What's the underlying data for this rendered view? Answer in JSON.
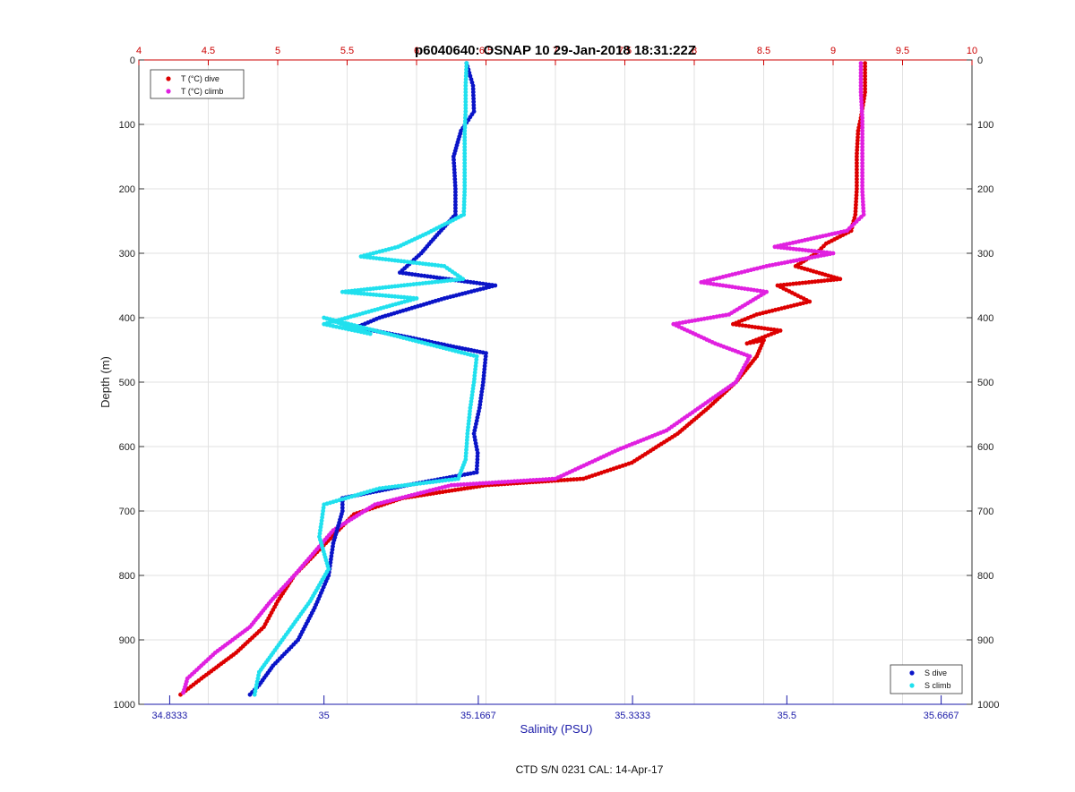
{
  "chart_data": {
    "type": "scatter",
    "title": "p6040640: OSNAP 10 29-Jan-2018 18:31:22Z",
    "ylabel": "Depth (m)",
    "xlabel_bottom": "Salinity (PSU)",
    "footer": "CTD S/N 0231  CAL: 14-Apr-17",
    "y_axis": {
      "range": [
        0,
        1000
      ],
      "reversed": true,
      "ticks": [
        "0",
        "100",
        "200",
        "300",
        "400",
        "500",
        "600",
        "700",
        "800",
        "900",
        "1000"
      ]
    },
    "x_top": {
      "name": "temperature",
      "range": [
        4,
        10
      ],
      "color": "#cc0000",
      "ticks": [
        "4",
        "4.5",
        "5",
        "5.5",
        "6",
        "6.5",
        "7",
        "7.5",
        "8",
        "8.5",
        "9",
        "9.5",
        "10"
      ]
    },
    "x_bottom": {
      "name": "salinity",
      "range": [
        34.8,
        35.7
      ],
      "color": "#1a1aa8",
      "ticks": [
        "34.8333",
        "35",
        "35.1667",
        "35.3333",
        "35.5",
        "35.6667"
      ]
    },
    "grid": true,
    "legends": [
      {
        "position": "top-left",
        "entries": [
          "T (°C) dive",
          "T (°C) climb"
        ]
      },
      {
        "position": "bottom-right",
        "entries": [
          "S dive",
          "S climb"
        ]
      }
    ],
    "series": [
      {
        "name": "T (°C) dive",
        "axis": "top",
        "color": "#dd0000",
        "points": [
          [
            9.23,
            5
          ],
          [
            9.23,
            50
          ],
          [
            9.2,
            90
          ],
          [
            9.18,
            110
          ],
          [
            9.17,
            150
          ],
          [
            9.17,
            200
          ],
          [
            9.16,
            240
          ],
          [
            9.13,
            265
          ],
          [
            8.95,
            285
          ],
          [
            8.88,
            300
          ],
          [
            8.73,
            320
          ],
          [
            9.05,
            340
          ],
          [
            8.6,
            350
          ],
          [
            8.83,
            375
          ],
          [
            8.45,
            395
          ],
          [
            8.28,
            410
          ],
          [
            8.62,
            420
          ],
          [
            8.38,
            440
          ],
          [
            8.5,
            435
          ],
          [
            8.45,
            460
          ],
          [
            8.3,
            500
          ],
          [
            8.1,
            540
          ],
          [
            7.88,
            580
          ],
          [
            7.55,
            625
          ],
          [
            7.2,
            650
          ],
          [
            6.5,
            660
          ],
          [
            5.9,
            680
          ],
          [
            5.55,
            705
          ],
          [
            5.3,
            760
          ],
          [
            5.12,
            800
          ],
          [
            5.0,
            840
          ],
          [
            4.9,
            880
          ],
          [
            4.7,
            920
          ],
          [
            4.45,
            960
          ],
          [
            4.3,
            985
          ]
        ]
      },
      {
        "name": "T (°C) climb",
        "axis": "top",
        "color": "#e020e0",
        "points": [
          [
            9.2,
            5
          ],
          [
            9.2,
            50
          ],
          [
            9.21,
            90
          ],
          [
            9.21,
            150
          ],
          [
            9.21,
            200
          ],
          [
            9.22,
            240
          ],
          [
            9.1,
            265
          ],
          [
            8.58,
            290
          ],
          [
            9.0,
            300
          ],
          [
            8.52,
            320
          ],
          [
            8.05,
            345
          ],
          [
            8.52,
            360
          ],
          [
            8.25,
            395
          ],
          [
            7.85,
            410
          ],
          [
            7.95,
            420
          ],
          [
            8.15,
            440
          ],
          [
            8.4,
            460
          ],
          [
            8.3,
            500
          ],
          [
            8.1,
            530
          ],
          [
            7.8,
            575
          ],
          [
            7.45,
            605
          ],
          [
            7.0,
            650
          ],
          [
            6.25,
            660
          ],
          [
            5.7,
            690
          ],
          [
            5.4,
            730
          ],
          [
            5.12,
            800
          ],
          [
            4.95,
            840
          ],
          [
            4.8,
            880
          ],
          [
            4.55,
            920
          ],
          [
            4.35,
            960
          ],
          [
            4.32,
            982
          ]
        ]
      },
      {
        "name": "S dive",
        "axis": "bottom",
        "color": "#0a14c8",
        "points": [
          [
            35.154,
            5
          ],
          [
            35.161,
            40
          ],
          [
            35.162,
            80
          ],
          [
            35.148,
            110
          ],
          [
            35.14,
            150
          ],
          [
            35.142,
            200
          ],
          [
            35.142,
            240
          ],
          [
            35.12,
            275
          ],
          [
            35.105,
            300
          ],
          [
            35.082,
            330
          ],
          [
            35.185,
            350
          ],
          [
            35.13,
            370
          ],
          [
            35.06,
            400
          ],
          [
            35.035,
            415
          ],
          [
            35.09,
            430
          ],
          [
            35.14,
            445
          ],
          [
            35.175,
            455
          ],
          [
            35.172,
            500
          ],
          [
            35.168,
            540
          ],
          [
            35.162,
            580
          ],
          [
            35.166,
            610
          ],
          [
            35.165,
            640
          ],
          [
            35.09,
            660
          ],
          [
            35.02,
            680
          ],
          [
            35.02,
            700
          ],
          [
            35.01,
            750
          ],
          [
            35.005,
            800
          ],
          [
            34.99,
            850
          ],
          [
            34.972,
            900
          ],
          [
            34.945,
            940
          ],
          [
            34.93,
            970
          ],
          [
            34.92,
            985
          ]
        ]
      },
      {
        "name": "S climb",
        "axis": "bottom",
        "color": "#20e0ee",
        "points": [
          [
            35.154,
            5
          ],
          [
            35.153,
            40
          ],
          [
            35.153,
            80
          ],
          [
            35.152,
            110
          ],
          [
            35.152,
            150
          ],
          [
            35.152,
            200
          ],
          [
            35.151,
            240
          ],
          [
            35.11,
            270
          ],
          [
            35.08,
            290
          ],
          [
            35.04,
            305
          ],
          [
            35.13,
            320
          ],
          [
            35.15,
            340
          ],
          [
            35.02,
            360
          ],
          [
            35.1,
            370
          ],
          [
            35.0,
            410
          ],
          [
            35.05,
            425
          ],
          [
            35.0,
            400
          ],
          [
            35.165,
            460
          ],
          [
            35.162,
            500
          ],
          [
            35.158,
            540
          ],
          [
            35.155,
            580
          ],
          [
            35.153,
            620
          ],
          [
            35.145,
            650
          ],
          [
            35.06,
            665
          ],
          [
            35.0,
            690
          ],
          [
            34.995,
            740
          ],
          [
            35.005,
            790
          ],
          [
            34.985,
            840
          ],
          [
            34.965,
            880
          ],
          [
            34.945,
            920
          ],
          [
            34.93,
            950
          ],
          [
            34.925,
            985
          ]
        ]
      }
    ]
  }
}
